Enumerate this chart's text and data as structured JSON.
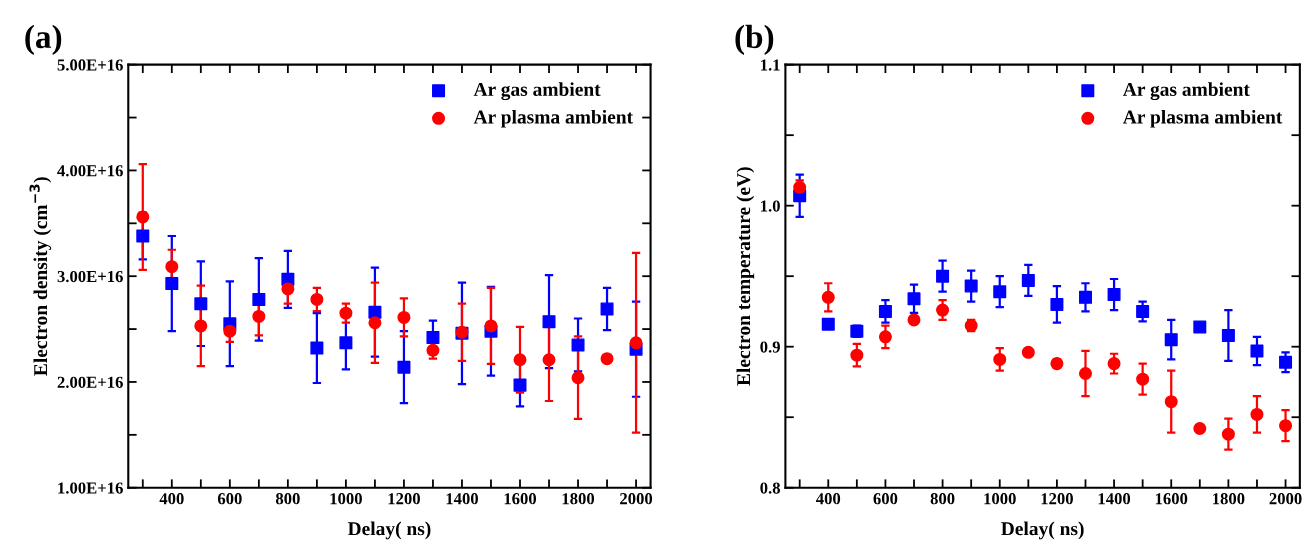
{
  "chart_data": [
    {
      "type": "scatter",
      "title": "(a)",
      "xlabel": "Delay( ns)",
      "ylabel": "Electron density (cm$^{−3}$)",
      "x": [
        300,
        400,
        500,
        600,
        700,
        800,
        900,
        1000,
        1100,
        1200,
        1300,
        1400,
        1500,
        1600,
        1700,
        1800,
        1900,
        2000
      ],
      "xlim": [
        250,
        2050
      ],
      "xticks": [
        {
          "value": 300,
          "label": null
        },
        400,
        {
          "value": 500,
          "label": null
        },
        600,
        {
          "value": 700,
          "label": null
        },
        800,
        {
          "value": 900,
          "label": null
        },
        1000,
        {
          "value": 1100,
          "label": null
        },
        1200,
        {
          "value": 1300,
          "label": null
        },
        1400,
        {
          "value": 1500,
          "label": null
        },
        1600,
        {
          "value": 1700,
          "label": null
        },
        1800,
        {
          "value": 1900,
          "label": null
        },
        2000
      ],
      "ylim": [
        1e+16,
        5e+16
      ],
      "yticks": [
        {
          "value": 1e+16,
          "label": "1.00E+16"
        },
        {
          "value": 1.5e+16,
          "label": null
        },
        {
          "value": 2e+16,
          "label": "2.00E+16"
        },
        {
          "value": 2.5e+16,
          "label": null
        },
        {
          "value": 3e+16,
          "label": "3.00E+16"
        },
        {
          "value": 3.5e+16,
          "label": null
        },
        {
          "value": 4e+16,
          "label": "4.00E+16"
        },
        {
          "value": 4.5e+16,
          "label": null
        },
        {
          "value": 5e+16,
          "label": "5.00E+16"
        }
      ],
      "legend": "top right",
      "grid": false,
      "series": [
        {
          "name": "Ar gas ambient",
          "color": "#0000ff",
          "marker": "square",
          "values": [
            3.38e+16,
            2.93e+16,
            2.74e+16,
            2.55e+16,
            2.78e+16,
            2.97e+16,
            2.32e+16,
            2.37e+16,
            2.66e+16,
            2.14e+16,
            2.42e+16,
            2.46e+16,
            2.48e+16,
            1.97e+16,
            2.57e+16,
            2.35e+16,
            2.69e+16,
            2.31e+16
          ],
          "errors": [
            2200000000000000.0,
            4500000000000000.0,
            4000000000000000.0,
            4000000000000000.0,
            3900000000000000.0,
            2700000000000000.0,
            3300000000000000.0,
            2500000000000000.0,
            4200000000000000.0,
            3400000000000000.0,
            1600000000000000.0,
            4800000000000000.0,
            4200000000000000.0,
            2000000000000000.0,
            4400000000000000.0,
            2500000000000000.0,
            2000000000000000.0,
            4500000000000000.0
          ]
        },
        {
          "name": "Ar plasma ambient",
          "color": "#ff0000",
          "marker": "circle",
          "values": [
            3.56e+16,
            3.09e+16,
            2.53e+16,
            2.48e+16,
            2.62e+16,
            2.88e+16,
            2.78e+16,
            2.65e+16,
            2.56e+16,
            2.61e+16,
            2.3e+16,
            2.47e+16,
            2.53e+16,
            2.21e+16,
            2.21e+16,
            2.04e+16,
            2.22e+16,
            2.37e+16
          ],
          "errors": [
            5000000000000000.0,
            1600000000000000.0,
            3800000000000000.0,
            1000000000000000.0,
            1800000000000000.0,
            1400000000000000.0,
            1100000000000000.0,
            900000000000000.0,
            3800000000000000.0,
            1800000000000000.0,
            800000000000000.0,
            2700000000000000.0,
            3600000000000000.0,
            3100000000000000.0,
            3900000000000000.0,
            3900000000000000.0,
            300000000000000.0,
            8500000000000000.0
          ]
        }
      ]
    },
    {
      "type": "scatter",
      "title": "(b)",
      "xlabel": "Delay( ns)",
      "ylabel": "Electron temperature (eV)",
      "x": [
        300,
        400,
        500,
        600,
        700,
        800,
        900,
        1000,
        1100,
        1200,
        1300,
        1400,
        1500,
        1600,
        1700,
        1800,
        1900,
        2000
      ],
      "xlim": [
        250,
        2050
      ],
      "xticks": [
        {
          "value": 300,
          "label": null
        },
        400,
        {
          "value": 500,
          "label": null
        },
        600,
        {
          "value": 700,
          "label": null
        },
        800,
        {
          "value": 900,
          "label": null
        },
        1000,
        {
          "value": 1100,
          "label": null
        },
        1200,
        {
          "value": 1300,
          "label": null
        },
        1400,
        {
          "value": 1500,
          "label": null
        },
        1600,
        {
          "value": 1700,
          "label": null
        },
        1800,
        {
          "value": 1900,
          "label": null
        },
        2000
      ],
      "ylim": [
        0.8,
        1.1
      ],
      "yticks": [
        0.8,
        {
          "value": 0.85,
          "label": null
        },
        0.9,
        {
          "value": 0.95,
          "label": null
        },
        {
          "value": 1.0,
          "label": "1.0"
        },
        {
          "value": 1.05,
          "label": null
        },
        1.1
      ],
      "legend": "top right",
      "grid": false,
      "series": [
        {
          "name": "Ar gas ambient",
          "color": "#0000ff",
          "marker": "square",
          "values": [
            1.007,
            0.916,
            0.911,
            0.925,
            0.934,
            0.95,
            0.943,
            0.939,
            0.947,
            0.93,
            0.935,
            0.937,
            0.925,
            0.905,
            0.914,
            0.908,
            0.897,
            0.889
          ],
          "errors": [
            0.015,
            0.003,
            0.004,
            0.008,
            0.01,
            0.011,
            0.011,
            0.011,
            0.011,
            0.013,
            0.01,
            0.011,
            0.007,
            0.014,
            0.003,
            0.018,
            0.01,
            0.007
          ]
        },
        {
          "name": "Ar plasma ambient",
          "color": "#ff0000",
          "marker": "circle",
          "values": [
            1.013,
            0.935,
            0.894,
            0.907,
            0.919,
            0.926,
            0.915,
            0.891,
            0.896,
            0.888,
            0.881,
            0.888,
            0.877,
            0.861,
            0.842,
            0.838,
            0.852,
            0.844
          ],
          "errors": [
            0.005,
            0.01,
            0.008,
            0.008,
            0.002,
            0.007,
            0.004,
            0.008,
            0.002,
            0.003,
            0.016,
            0.007,
            0.011,
            0.022,
            0.002,
            0.011,
            0.013,
            0.011
          ]
        }
      ]
    }
  ]
}
